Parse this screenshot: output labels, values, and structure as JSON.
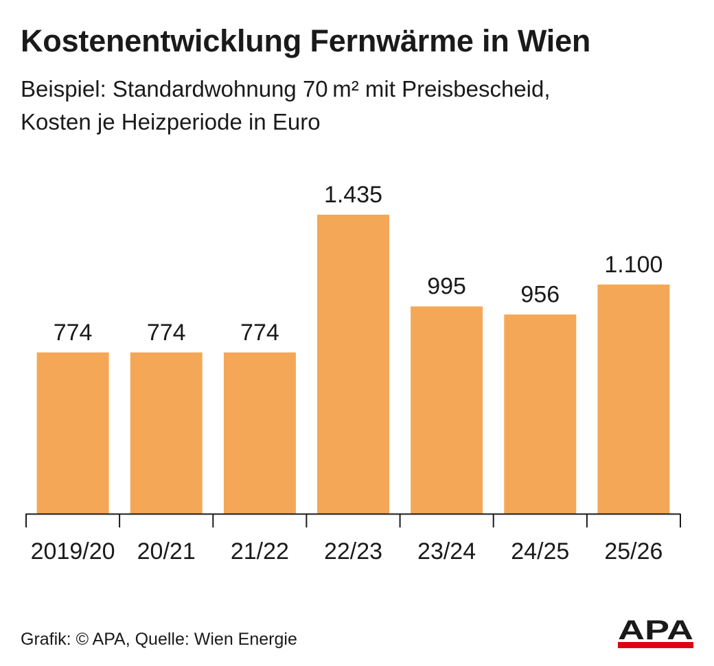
{
  "header": {
    "title": "Kostenentwicklung Fernwärme in Wien",
    "subtitle_line1": "Beispiel: Standardwohnung 70 m² mit Preisbescheid,",
    "subtitle_line2": "Kosten je Heizperiode in Euro"
  },
  "footer": {
    "credit": "Grafik: © APA, Quelle: Wien Energie",
    "logo_text": "APA"
  },
  "colors": {
    "bar": "#f4a857",
    "text": "#1a1a1a",
    "axis": "#1a1a1a",
    "logo_red": "#e3000f"
  },
  "chart_data": {
    "type": "bar",
    "categories": [
      "2019/20",
      "20/21",
      "21/22",
      "22/23",
      "23/24",
      "24/25",
      "25/26"
    ],
    "values": [
      774,
      774,
      774,
      1435,
      995,
      956,
      1100
    ],
    "value_labels": [
      "774",
      "774",
      "774",
      "1.435",
      "995",
      "956",
      "1.100"
    ],
    "ylim": [
      0,
      1435
    ],
    "grid": false,
    "legend": "none"
  }
}
